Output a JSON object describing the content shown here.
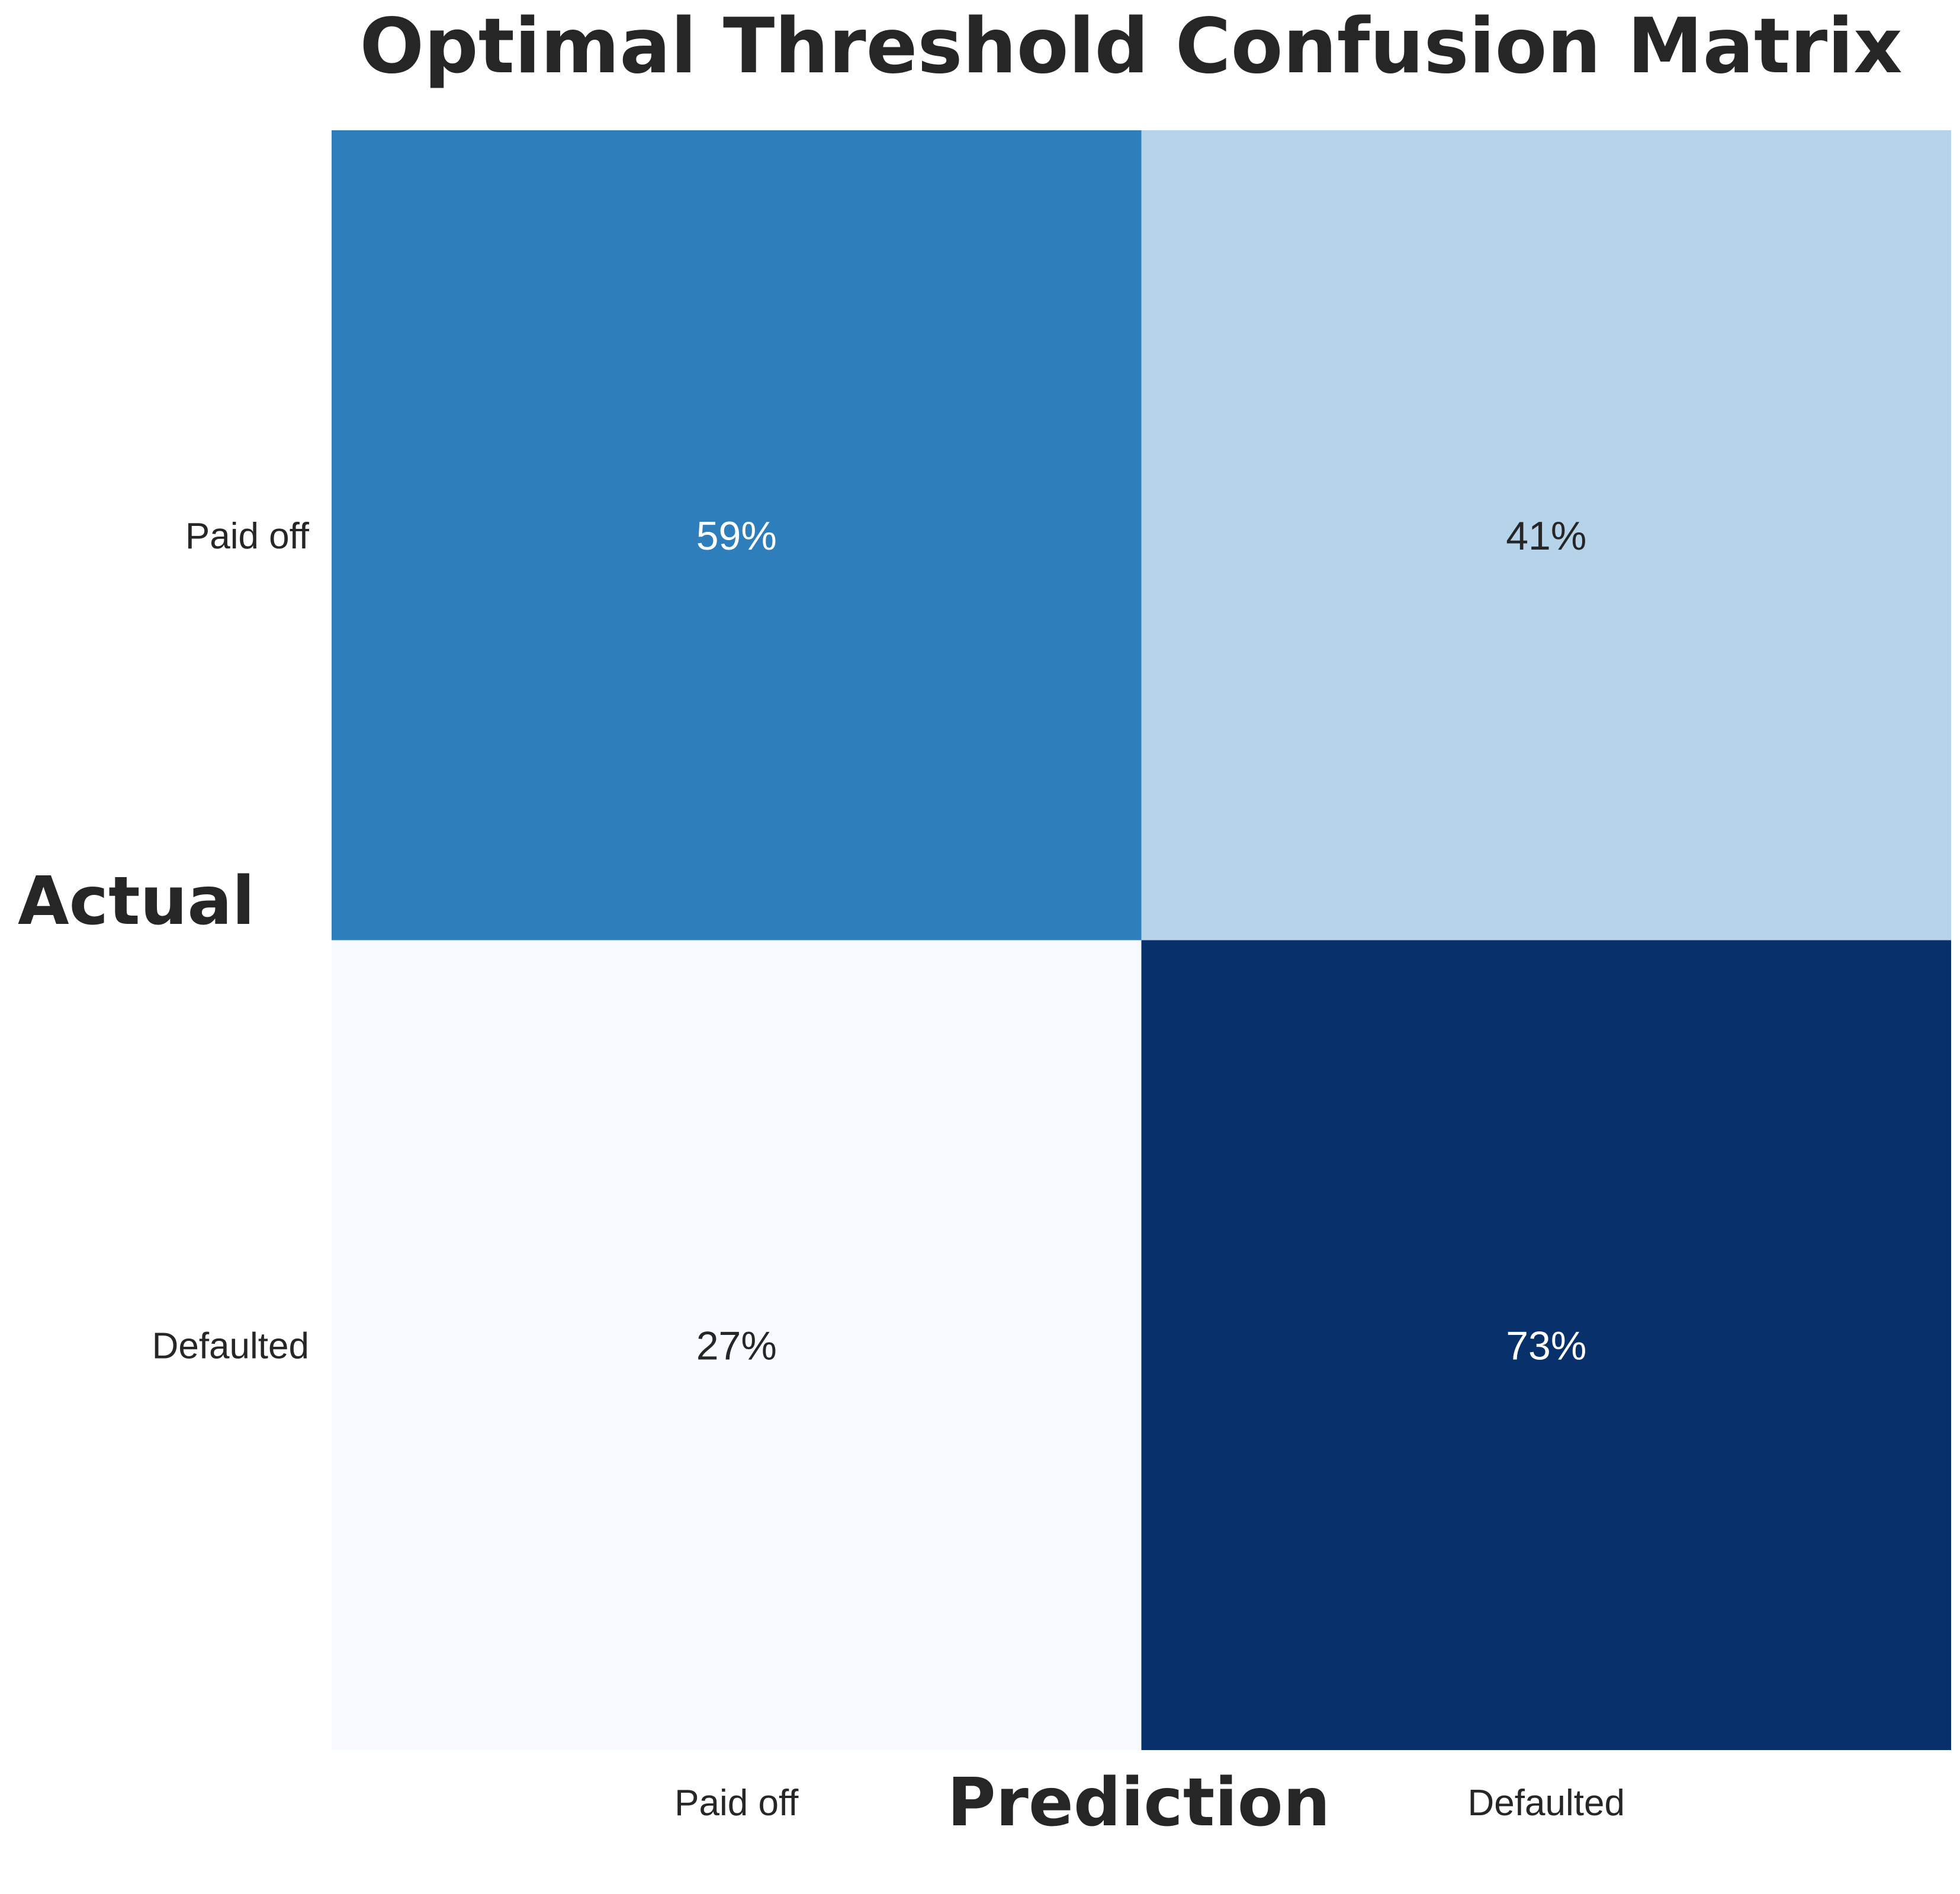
{
  "chart_data": {
    "type": "heatmap",
    "title": "Optimal Threshold Confusion Matrix",
    "xlabel": "Prediction",
    "ylabel": "Actual",
    "x_categories": [
      "Paid off",
      "Defaulted"
    ],
    "y_categories": [
      "Paid off",
      "Defaulted"
    ],
    "values": [
      [
        59,
        41
      ],
      [
        27,
        73
      ]
    ],
    "cell_labels": [
      [
        "59%",
        "41%"
      ],
      [
        "27%",
        "73%"
      ]
    ],
    "colormap": "Blues",
    "vmin": 27,
    "vmax": 73,
    "colorbar": false,
    "grid": false
  },
  "colors": {
    "cell_00": "#2f7ebc",
    "cell_01": "#b5d4e9",
    "cell_10": "#f7fbff",
    "cell_11": "#08306b",
    "label_on_dark": "#ffffff",
    "label_on_light": "#262626"
  }
}
